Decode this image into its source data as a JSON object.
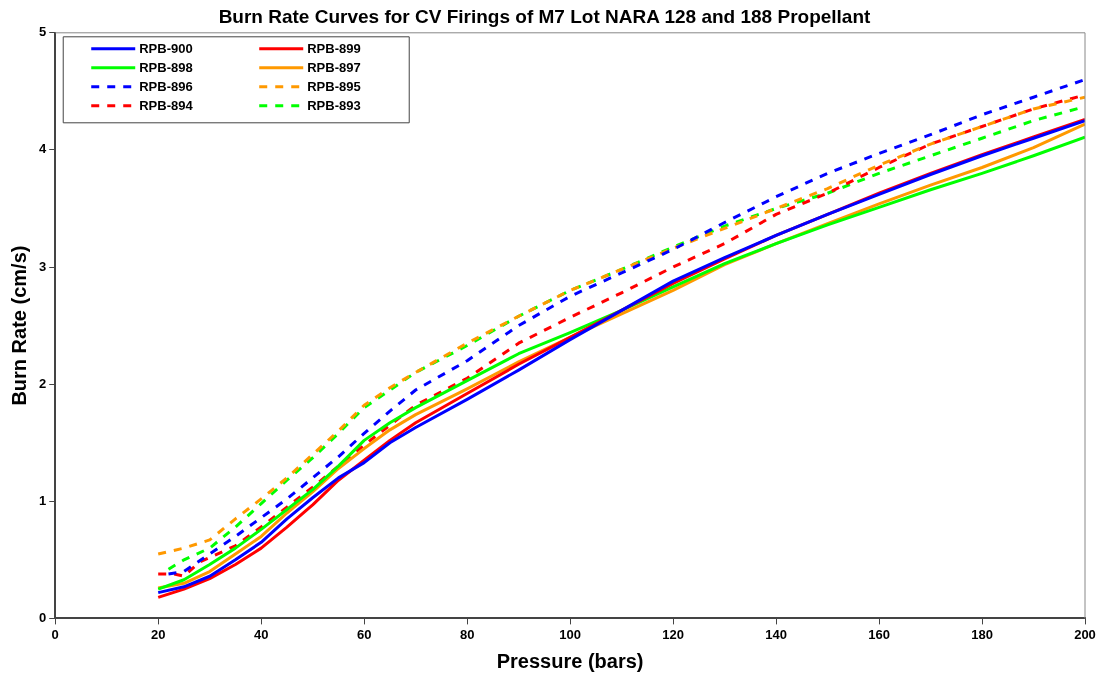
{
  "chart_data": {
    "type": "line",
    "title": "Burn Rate Curves for CV Firings of M7 Lot NARA 128 and 188 Propellant",
    "xlabel": "Pressure (bars)",
    "ylabel": "Burn Rate (cm/s)",
    "x": [
      20,
      25,
      30,
      35,
      40,
      45,
      50,
      55,
      60,
      65,
      70,
      80,
      90,
      100,
      110,
      120,
      130,
      140,
      150,
      160,
      170,
      180,
      190,
      200
    ],
    "xlim": [
      0,
      200
    ],
    "xticks": [
      0,
      20,
      40,
      60,
      80,
      100,
      120,
      140,
      160,
      180,
      200
    ],
    "ylim": [
      0,
      5
    ],
    "yticks": [
      0,
      1,
      2,
      3,
      4,
      5
    ],
    "grid": false,
    "legend": "top left",
    "marker": "none",
    "series": [
      {
        "name": "RPB-900",
        "color": "#0000ff",
        "line_style": "solid",
        "values": [
          0.22,
          0.27,
          0.36,
          0.5,
          0.65,
          0.85,
          1.03,
          1.2,
          1.33,
          1.5,
          1.63,
          1.87,
          2.12,
          2.38,
          2.63,
          2.88,
          3.08,
          3.27,
          3.45,
          3.62,
          3.79,
          3.95,
          4.1,
          4.25
        ]
      },
      {
        "name": "RPB-899",
        "color": "#ff0000",
        "line_style": "solid",
        "values": [
          0.18,
          0.25,
          0.34,
          0.46,
          0.6,
          0.78,
          0.97,
          1.18,
          1.35,
          1.52,
          1.67,
          1.92,
          2.17,
          2.4,
          2.63,
          2.86,
          3.07,
          3.27,
          3.45,
          3.63,
          3.8,
          3.96,
          4.11,
          4.26
        ]
      },
      {
        "name": "RPB-898",
        "color": "#00ff00",
        "line_style": "solid",
        "values": [
          0.25,
          0.33,
          0.46,
          0.6,
          0.76,
          0.93,
          1.1,
          1.3,
          1.52,
          1.67,
          1.8,
          2.03,
          2.26,
          2.44,
          2.63,
          2.83,
          3.03,
          3.2,
          3.36,
          3.51,
          3.66,
          3.8,
          3.95,
          4.11
        ]
      },
      {
        "name": "RPB-897",
        "color": "#ff9900",
        "line_style": "solid",
        "values": [
          0.26,
          0.3,
          0.4,
          0.55,
          0.7,
          0.9,
          1.08,
          1.28,
          1.45,
          1.61,
          1.74,
          1.96,
          2.19,
          2.4,
          2.6,
          2.8,
          3.02,
          3.2,
          3.37,
          3.54,
          3.7,
          3.85,
          4.02,
          4.22
        ]
      },
      {
        "name": "RPB-896",
        "color": "#0000ff",
        "line_style": "dashed",
        "x": [
          22,
          25,
          30,
          35,
          40,
          45,
          50,
          55,
          60,
          65,
          70,
          80,
          90,
          100,
          110,
          120,
          130,
          140,
          150,
          160,
          170,
          180,
          190,
          200
        ],
        "values": [
          0.38,
          0.4,
          0.55,
          0.7,
          0.86,
          1.02,
          1.2,
          1.38,
          1.58,
          1.77,
          1.95,
          2.2,
          2.5,
          2.75,
          2.95,
          3.15,
          3.38,
          3.6,
          3.8,
          3.97,
          4.13,
          4.3,
          4.45,
          4.6
        ]
      },
      {
        "name": "RPB-895",
        "color": "#ff9900",
        "line_style": "dashed",
        "values": [
          0.55,
          0.6,
          0.67,
          0.85,
          1.02,
          1.2,
          1.4,
          1.6,
          1.82,
          1.97,
          2.1,
          2.35,
          2.58,
          2.8,
          2.98,
          3.16,
          3.33,
          3.5,
          3.67,
          3.87,
          4.05,
          4.2,
          4.35,
          4.45
        ]
      },
      {
        "name": "RPB-894",
        "color": "#ff0000",
        "line_style": "dashed",
        "x": [
          20,
          23,
          25,
          28,
          35,
          40,
          45,
          50,
          55,
          60,
          65,
          70,
          80,
          90,
          100,
          110,
          120,
          130,
          140,
          150,
          160,
          170,
          180,
          190,
          200
        ],
        "values": [
          0.38,
          0.38,
          0.36,
          0.48,
          0.62,
          0.78,
          0.95,
          1.12,
          1.3,
          1.48,
          1.65,
          1.82,
          2.05,
          2.35,
          2.57,
          2.78,
          3.0,
          3.2,
          3.45,
          3.63,
          3.85,
          4.05,
          4.2,
          4.35,
          4.47
        ]
      },
      {
        "name": "RPB-893",
        "color": "#00ff00",
        "line_style": "dashed",
        "x": [
          22,
          25,
          30,
          35,
          40,
          45,
          50,
          55,
          60,
          65,
          70,
          80,
          90,
          100,
          110,
          120,
          130,
          140,
          150,
          160,
          170,
          180,
          190,
          200
        ],
        "values": [
          0.42,
          0.5,
          0.6,
          0.78,
          0.98,
          1.18,
          1.37,
          1.58,
          1.8,
          1.95,
          2.1,
          2.33,
          2.58,
          2.8,
          2.98,
          3.17,
          3.35,
          3.5,
          3.63,
          3.8,
          3.95,
          4.1,
          4.25,
          4.37
        ]
      }
    ]
  }
}
